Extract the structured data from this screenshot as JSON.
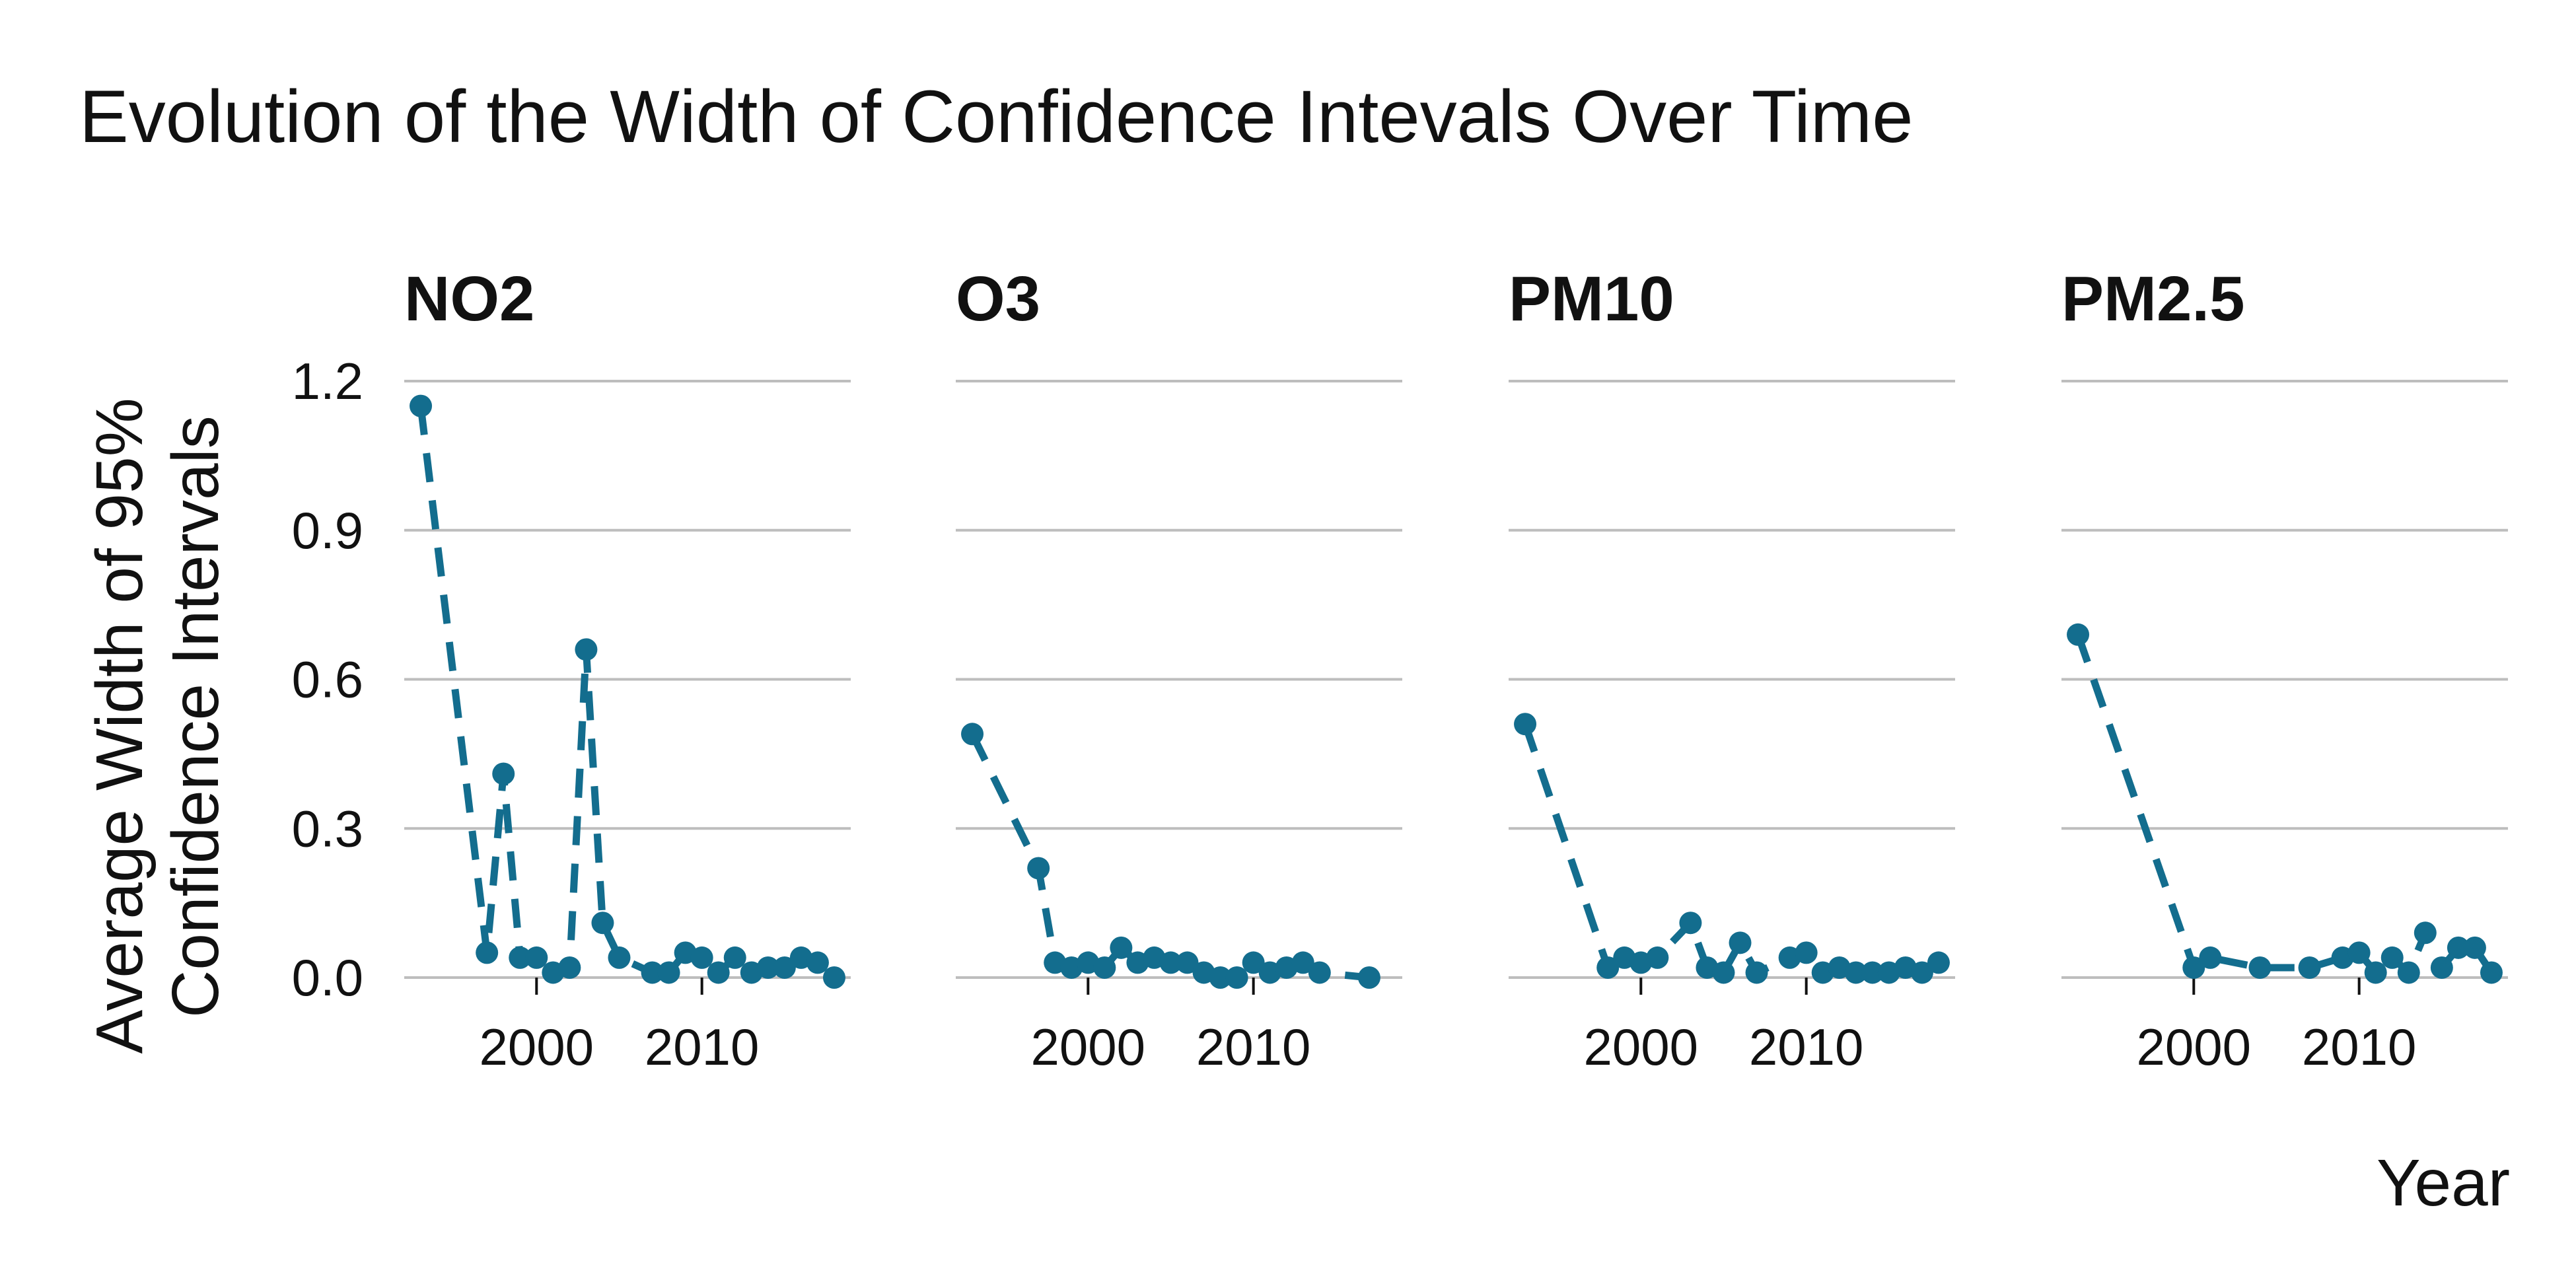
{
  "chart_data": {
    "type": "line",
    "title": "Evolution of the Width of Confidence Intevals Over Time",
    "xlabel": "Year",
    "ylabel_lines": [
      "Average Width of 95%",
      "Confidence Intervals"
    ],
    "ylim": [
      0,
      1.2
    ],
    "y_ticks": [
      0.0,
      0.3,
      0.6,
      0.9,
      1.2
    ],
    "y_tick_labels": [
      "0.0",
      "0.3",
      "0.6",
      "0.9",
      "1.2"
    ],
    "xlim": [
      1992,
      2019
    ],
    "x_ticks": [
      2000,
      2010
    ],
    "x_tick_labels": [
      "2000",
      "2010"
    ],
    "grid": true,
    "line_style": "dashed",
    "color": "#136d8e",
    "facets": [
      {
        "name": "NO2",
        "x": [
          1993,
          1997,
          1998,
          1999,
          2000,
          2001,
          2002,
          2003,
          2004,
          2005,
          2007,
          2008,
          2009,
          2010,
          2011,
          2012,
          2013,
          2014,
          2015,
          2016,
          2017,
          2018
        ],
        "y": [
          1.15,
          0.05,
          0.41,
          0.04,
          0.04,
          0.01,
          0.02,
          0.66,
          0.11,
          0.04,
          0.01,
          0.01,
          0.05,
          0.04,
          0.01,
          0.04,
          0.01,
          0.02,
          0.02,
          0.04,
          0.03,
          0.0
        ]
      },
      {
        "name": "O3",
        "x": [
          1993,
          1997,
          1998,
          1999,
          2000,
          2001,
          2002,
          2003,
          2004,
          2005,
          2006,
          2007,
          2008,
          2009,
          2010,
          2011,
          2012,
          2013,
          2014,
          2017
        ],
        "y": [
          0.49,
          0.22,
          0.03,
          0.02,
          0.03,
          0.02,
          0.06,
          0.03,
          0.04,
          0.03,
          0.03,
          0.01,
          0.0,
          0.0,
          0.03,
          0.01,
          0.02,
          0.03,
          0.01,
          0.0
        ]
      },
      {
        "name": "PM10",
        "x": [
          1993,
          1998,
          1999,
          2000,
          2001,
          2003,
          2004,
          2005,
          2006,
          2007,
          2009,
          2010,
          2011,
          2012,
          2013,
          2014,
          2015,
          2016,
          2017,
          2018
        ],
        "y": [
          0.51,
          0.02,
          0.04,
          0.03,
          0.04,
          0.11,
          0.02,
          0.01,
          0.07,
          0.01,
          0.04,
          0.05,
          0.01,
          0.02,
          0.01,
          0.01,
          0.01,
          0.02,
          0.01,
          0.03
        ]
      },
      {
        "name": "PM2.5",
        "x": [
          1993,
          2000,
          2001,
          2004,
          2007,
          2009,
          2010,
          2011,
          2012,
          2013,
          2014,
          2015,
          2016,
          2017,
          2018
        ],
        "y": [
          0.69,
          0.02,
          0.04,
          0.02,
          0.02,
          0.04,
          0.05,
          0.01,
          0.04,
          0.01,
          0.09,
          0.02,
          0.06,
          0.06,
          0.01
        ]
      }
    ]
  }
}
